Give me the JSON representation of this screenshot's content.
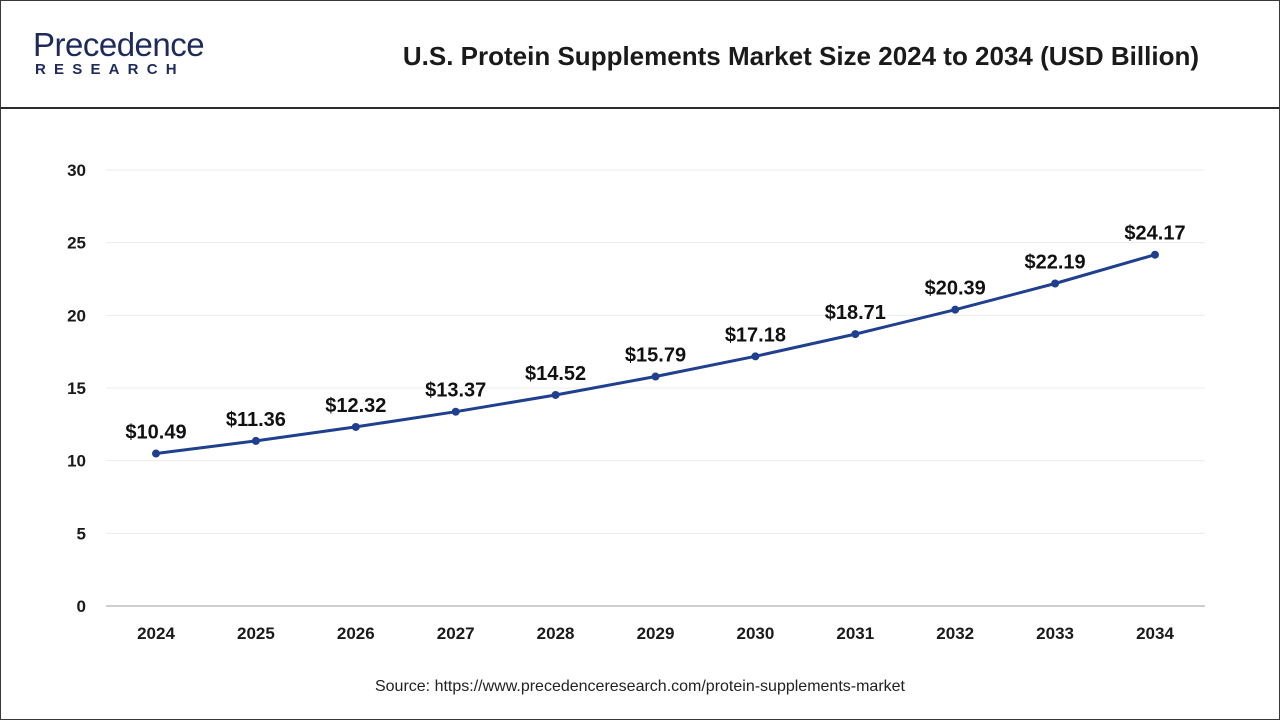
{
  "header": {
    "logo_main": "Precedence",
    "logo_sub": "RESEARCH",
    "title": "U.S. Protein Supplements Market Size 2024 to 2034 (USD Billion)"
  },
  "source": "Source: https://www.precedenceresearch.com/protein-supplements-market",
  "colors": {
    "line": "#1f3f8f",
    "marker": "#1f3f8f",
    "grid": "#ececec",
    "axis": "#bdbdbd",
    "brand": "#1e2a5c"
  },
  "chart_data": {
    "type": "line",
    "title": "U.S. Protein Supplements Market Size 2024 to 2034 (USD Billion)",
    "categories": [
      "2024",
      "2025",
      "2026",
      "2027",
      "2028",
      "2029",
      "2030",
      "2031",
      "2032",
      "2033",
      "2034"
    ],
    "values": [
      10.49,
      11.36,
      12.32,
      13.37,
      14.52,
      15.79,
      17.18,
      18.71,
      20.39,
      22.19,
      24.17
    ],
    "data_labels": [
      "$10.49",
      "$11.36",
      "$12.32",
      "$13.37",
      "$14.52",
      "$15.79",
      "$17.18",
      "$18.71",
      "$20.39",
      "$22.19",
      "$24.17"
    ],
    "ylim": [
      0,
      30
    ],
    "yticks": [
      0,
      5,
      10,
      15,
      20,
      25,
      30
    ],
    "xlabel": "",
    "ylabel": "",
    "grid": true,
    "legend": "none"
  }
}
